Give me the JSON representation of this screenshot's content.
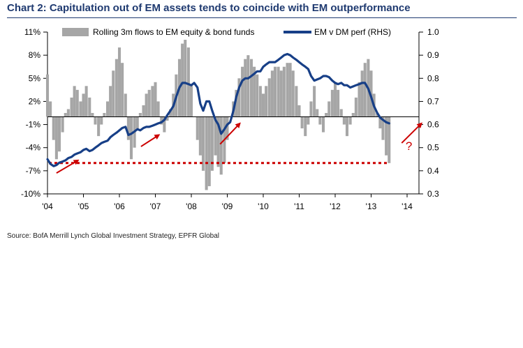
{
  "title": "Chart 2: Capitulation out of EM assets tends to coincide with EM outperformance",
  "source": "Source: BofA Merrill Lynch Global Investment Strategy, EPFR Global",
  "colors": {
    "title": "#1f3a70",
    "bars": "#a6a6a6",
    "line": "#173f87",
    "threshold": "#cc0000",
    "arrow": "#cc0000"
  },
  "chart_data": {
    "type": "bar+line",
    "x_ticks": [
      "'04",
      "'05",
      "'06",
      "'07",
      "'08",
      "'09",
      "'10",
      "'11",
      "'12",
      "'13",
      "'14"
    ],
    "x_range": [
      2004,
      2014.5
    ],
    "y_left": {
      "ticks": [
        "11%",
        "8%",
        "5%",
        "2%",
        "-1%",
        "-4%",
        "-7%",
        "-10%"
      ],
      "range": [
        -10,
        11
      ]
    },
    "y_right": {
      "ticks": [
        "1.0",
        "0.9",
        "0.8",
        "0.7",
        "0.6",
        "0.5",
        "0.4",
        "0.3"
      ],
      "range": [
        0.3,
        1.0
      ]
    },
    "legend": [
      {
        "name": "Rolling 3m flows to EM equity & bond funds",
        "kind": "bar"
      },
      {
        "name": "EM v DM perf (RHS)",
        "kind": "line"
      }
    ],
    "bar_series": {
      "name": "Rolling 3m flows to EM equity & bond funds",
      "x": [
        2004.0,
        2004.08,
        2004.17,
        2004.25,
        2004.33,
        2004.42,
        2004.5,
        2004.58,
        2004.67,
        2004.75,
        2004.83,
        2004.92,
        2005.0,
        2005.08,
        2005.17,
        2005.25,
        2005.33,
        2005.42,
        2005.5,
        2005.58,
        2005.67,
        2005.75,
        2005.83,
        2005.92,
        2006.0,
        2006.08,
        2006.17,
        2006.25,
        2006.33,
        2006.42,
        2006.5,
        2006.58,
        2006.67,
        2006.75,
        2006.83,
        2006.92,
        2007.0,
        2007.08,
        2007.17,
        2007.25,
        2007.33,
        2007.42,
        2007.5,
        2007.58,
        2007.67,
        2007.75,
        2007.83,
        2007.92,
        2008.0,
        2008.08,
        2008.17,
        2008.25,
        2008.33,
        2008.42,
        2008.5,
        2008.58,
        2008.67,
        2008.75,
        2008.83,
        2008.92,
        2009.0,
        2009.08,
        2009.17,
        2009.25,
        2009.33,
        2009.42,
        2009.5,
        2009.58,
        2009.67,
        2009.75,
        2009.83,
        2009.92,
        2010.0,
        2010.08,
        2010.17,
        2010.25,
        2010.33,
        2010.42,
        2010.5,
        2010.58,
        2010.67,
        2010.75,
        2010.83,
        2010.92,
        2011.0,
        2011.08,
        2011.17,
        2011.25,
        2011.33,
        2011.42,
        2011.5,
        2011.58,
        2011.67,
        2011.75,
        2011.83,
        2011.92,
        2012.0,
        2012.08,
        2012.17,
        2012.25,
        2012.33,
        2012.42,
        2012.5,
        2012.58,
        2012.67,
        2012.75,
        2012.83,
        2012.92,
        2013.0,
        2013.08,
        2013.17,
        2013.25,
        2013.33,
        2013.42,
        2013.5
      ],
      "values": [
        5.5,
        2.0,
        -3.0,
        -5.5,
        -4.5,
        -2.0,
        0.5,
        1.0,
        2.5,
        4.0,
        3.5,
        2.0,
        3.0,
        4.0,
        2.5,
        0.5,
        -1.0,
        -2.5,
        -1.0,
        0.5,
        2.0,
        4.0,
        6.0,
        7.5,
        9.0,
        7.0,
        3.0,
        -3.0,
        -5.5,
        -4.0,
        -1.5,
        0.5,
        1.5,
        3.0,
        3.5,
        4.0,
        4.5,
        2.0,
        -1.0,
        -2.0,
        -0.5,
        1.0,
        3.0,
        5.5,
        7.5,
        9.5,
        10.0,
        9.0,
        4.0,
        0.0,
        -3.0,
        -5.0,
        -7.0,
        -9.5,
        -9.0,
        -7.0,
        -5.0,
        -6.5,
        -7.5,
        -6.0,
        -3.0,
        0.0,
        2.0,
        3.5,
        5.0,
        6.5,
        7.5,
        8.0,
        7.5,
        6.5,
        5.5,
        4.0,
        3.0,
        4.0,
        5.0,
        6.0,
        6.5,
        6.5,
        6.0,
        6.5,
        7.0,
        7.0,
        6.0,
        4.0,
        1.5,
        -1.5,
        -2.5,
        -1.0,
        2.0,
        4.0,
        1.0,
        -1.0,
        -2.0,
        0.5,
        2.0,
        3.5,
        4.5,
        3.5,
        1.0,
        -1.0,
        -2.5,
        -1.0,
        0.5,
        2.5,
        4.5,
        6.0,
        7.0,
        7.5,
        6.0,
        3.0,
        0.5,
        -1.5,
        -3.0,
        -5.0,
        -6.0
      ]
    },
    "line_series": {
      "name": "EM v DM perf (RHS)",
      "x": [
        2004.0,
        2004.08,
        2004.17,
        2004.25,
        2004.33,
        2004.42,
        2004.5,
        2004.58,
        2004.67,
        2004.75,
        2004.83,
        2004.92,
        2005.0,
        2005.08,
        2005.17,
        2005.25,
        2005.33,
        2005.42,
        2005.5,
        2005.58,
        2005.67,
        2005.75,
        2005.83,
        2005.92,
        2006.0,
        2006.08,
        2006.17,
        2006.25,
        2006.33,
        2006.42,
        2006.5,
        2006.58,
        2006.67,
        2006.75,
        2006.83,
        2006.92,
        2007.0,
        2007.08,
        2007.17,
        2007.25,
        2007.33,
        2007.42,
        2007.5,
        2007.58,
        2007.67,
        2007.75,
        2007.83,
        2007.92,
        2008.0,
        2008.08,
        2008.17,
        2008.25,
        2008.33,
        2008.42,
        2008.5,
        2008.58,
        2008.67,
        2008.75,
        2008.83,
        2008.92,
        2009.0,
        2009.08,
        2009.17,
        2009.25,
        2009.33,
        2009.42,
        2009.5,
        2009.58,
        2009.67,
        2009.75,
        2009.83,
        2009.92,
        2010.0,
        2010.08,
        2010.17,
        2010.25,
        2010.33,
        2010.42,
        2010.5,
        2010.58,
        2010.67,
        2010.75,
        2010.83,
        2010.92,
        2011.0,
        2011.08,
        2011.17,
        2011.25,
        2011.33,
        2011.42,
        2011.5,
        2011.58,
        2011.67,
        2011.75,
        2011.83,
        2011.92,
        2012.0,
        2012.08,
        2012.17,
        2012.25,
        2012.33,
        2012.42,
        2012.5,
        2012.58,
        2012.67,
        2012.75,
        2012.83,
        2012.92,
        2013.0,
        2013.08,
        2013.17,
        2013.25,
        2013.33,
        2013.42,
        2013.5
      ],
      "values": [
        0.45,
        0.43,
        0.42,
        0.425,
        0.435,
        0.44,
        0.445,
        0.455,
        0.46,
        0.47,
        0.475,
        0.48,
        0.49,
        0.495,
        0.485,
        0.49,
        0.5,
        0.51,
        0.52,
        0.525,
        0.53,
        0.545,
        0.555,
        0.565,
        0.575,
        0.585,
        0.59,
        0.555,
        0.56,
        0.57,
        0.58,
        0.575,
        0.585,
        0.59,
        0.59,
        0.595,
        0.6,
        0.605,
        0.61,
        0.62,
        0.64,
        0.66,
        0.68,
        0.72,
        0.76,
        0.78,
        0.78,
        0.775,
        0.77,
        0.78,
        0.76,
        0.69,
        0.66,
        0.7,
        0.7,
        0.66,
        0.62,
        0.6,
        0.56,
        0.58,
        0.6,
        0.61,
        0.66,
        0.72,
        0.76,
        0.79,
        0.8,
        0.8,
        0.81,
        0.82,
        0.83,
        0.83,
        0.85,
        0.86,
        0.87,
        0.87,
        0.87,
        0.88,
        0.89,
        0.9,
        0.905,
        0.9,
        0.89,
        0.88,
        0.87,
        0.86,
        0.85,
        0.84,
        0.81,
        0.79,
        0.795,
        0.8,
        0.81,
        0.81,
        0.805,
        0.79,
        0.78,
        0.775,
        0.78,
        0.77,
        0.77,
        0.76,
        0.765,
        0.77,
        0.775,
        0.78,
        0.78,
        0.755,
        0.72,
        0.68,
        0.65,
        0.63,
        0.62,
        0.61,
        0.605
      ]
    },
    "threshold_line": {
      "y_left": -6,
      "style": "dotted"
    },
    "annotations": [
      {
        "text": "?"
      }
    ]
  }
}
